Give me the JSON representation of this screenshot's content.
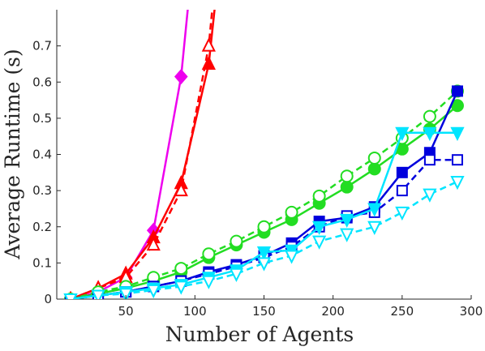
{
  "chart_data": {
    "type": "line",
    "title": "",
    "xlabel": "Number of Agents",
    "ylabel": "Average Runtime (s)",
    "xlim": [
      0,
      300
    ],
    "ylim": [
      0,
      0.8
    ],
    "xticks": [
      50,
      100,
      150,
      200,
      250,
      300
    ],
    "yticks": [
      0,
      0.1,
      0.2,
      0.3,
      0.4,
      0.5,
      0.6,
      0.7
    ],
    "ytick_labels": [
      "0",
      "0.1",
      "0.2",
      "0.3",
      "0.4",
      "0.5",
      "0.6",
      "0.7"
    ],
    "grid": false,
    "legend": "none",
    "series": [
      {
        "color": "#ee00ee",
        "marker": "diamond",
        "fill": true,
        "dash": false,
        "x": [
          10,
          30,
          50,
          70,
          90,
          100
        ],
        "y": [
          0.0,
          0.02,
          0.06,
          0.19,
          0.615,
          1.0
        ]
      },
      {
        "color": "#ff0000",
        "marker": "triangle-up",
        "fill": true,
        "dash": false,
        "x": [
          10,
          30,
          50,
          70,
          90,
          110,
          117
        ],
        "y": [
          0.0,
          0.03,
          0.07,
          0.17,
          0.32,
          0.65,
          0.9
        ]
      },
      {
        "color": "#ff0000",
        "marker": "triangle-up",
        "fill": false,
        "dash": true,
        "x": [
          10,
          30,
          50,
          70,
          90,
          110,
          115
        ],
        "y": [
          0.0,
          0.03,
          0.06,
          0.15,
          0.3,
          0.7,
          0.9
        ]
      },
      {
        "color": "#22dd22",
        "marker": "circle",
        "fill": true,
        "dash": false,
        "x": [
          10,
          30,
          50,
          70,
          90,
          110,
          130,
          150,
          170,
          190,
          210,
          230,
          250,
          270,
          290
        ],
        "y": [
          0.0,
          0.015,
          0.03,
          0.05,
          0.075,
          0.115,
          0.15,
          0.185,
          0.22,
          0.265,
          0.31,
          0.36,
          0.415,
          0.47,
          0.535
        ]
      },
      {
        "color": "#22dd22",
        "marker": "circle",
        "fill": false,
        "dash": true,
        "x": [
          10,
          30,
          50,
          70,
          90,
          110,
          130,
          150,
          170,
          190,
          210,
          230,
          250,
          270,
          290
        ],
        "y": [
          0.0,
          0.02,
          0.035,
          0.06,
          0.085,
          0.125,
          0.16,
          0.2,
          0.24,
          0.285,
          0.34,
          0.39,
          0.445,
          0.505,
          0.575
        ]
      },
      {
        "color": "#0000dd",
        "marker": "square",
        "fill": true,
        "dash": false,
        "x": [
          10,
          30,
          50,
          70,
          90,
          110,
          130,
          150,
          170,
          190,
          210,
          230,
          250,
          270,
          290
        ],
        "y": [
          0.0,
          0.01,
          0.02,
          0.035,
          0.05,
          0.075,
          0.095,
          0.12,
          0.155,
          0.215,
          0.225,
          0.255,
          0.35,
          0.405,
          0.575
        ]
      },
      {
        "color": "#0000dd",
        "marker": "square",
        "fill": false,
        "dash": true,
        "x": [
          10,
          30,
          50,
          70,
          90,
          110,
          130,
          150,
          170,
          190,
          210,
          230,
          250,
          270,
          290
        ],
        "y": [
          0.0,
          0.01,
          0.02,
          0.035,
          0.05,
          0.07,
          0.09,
          0.115,
          0.145,
          0.2,
          0.23,
          0.24,
          0.3,
          0.385,
          0.385
        ]
      },
      {
        "color": "#00e5ff",
        "marker": "triangle-down",
        "fill": true,
        "dash": false,
        "x": [
          10,
          30,
          50,
          70,
          90,
          110,
          130,
          150,
          170,
          190,
          210,
          230,
          250,
          270,
          290
        ],
        "y": [
          0.0,
          0.01,
          0.02,
          0.03,
          0.04,
          0.06,
          0.08,
          0.13,
          0.135,
          0.2,
          0.22,
          0.25,
          0.46,
          0.46,
          0.46
        ]
      },
      {
        "color": "#00e5ff",
        "marker": "triangle-down",
        "fill": false,
        "dash": true,
        "x": [
          10,
          30,
          50,
          70,
          90,
          110,
          130,
          150,
          170,
          190,
          210,
          230,
          250,
          270,
          290
        ],
        "y": [
          0.0,
          0.01,
          0.015,
          0.025,
          0.035,
          0.05,
          0.07,
          0.1,
          0.12,
          0.16,
          0.18,
          0.2,
          0.24,
          0.29,
          0.325
        ]
      }
    ]
  }
}
